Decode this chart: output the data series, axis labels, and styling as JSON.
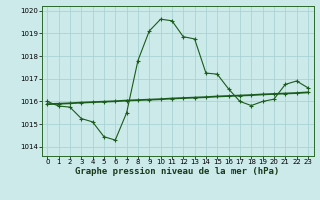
{
  "title": "Graphe pression niveau de la mer (hPa)",
  "bg_color": "#cceaea",
  "grid_color": "#aad4d4",
  "line_color": "#1a5c1a",
  "ylim": [
    1013.6,
    1020.2
  ],
  "xlim": [
    -0.5,
    23.5
  ],
  "yticks": [
    1014,
    1015,
    1016,
    1017,
    1018,
    1019,
    1020
  ],
  "xticks": [
    0,
    1,
    2,
    3,
    4,
    5,
    6,
    7,
    8,
    9,
    10,
    11,
    12,
    13,
    14,
    15,
    16,
    17,
    18,
    19,
    20,
    21,
    22,
    23
  ],
  "main_x": [
    0,
    1,
    2,
    3,
    4,
    5,
    6,
    7,
    8,
    9,
    10,
    11,
    12,
    13,
    14,
    15,
    16,
    17,
    18,
    19,
    20,
    21,
    22,
    23
  ],
  "main_y": [
    1016.0,
    1015.8,
    1015.75,
    1015.25,
    1015.1,
    1014.45,
    1014.3,
    1015.5,
    1017.8,
    1019.1,
    1019.62,
    1019.55,
    1018.85,
    1018.75,
    1017.25,
    1017.2,
    1016.55,
    1016.0,
    1015.82,
    1016.0,
    1016.1,
    1016.75,
    1016.9,
    1016.6
  ],
  "trend_x": [
    0,
    1,
    2,
    3,
    4,
    5,
    6,
    7,
    8,
    9,
    10,
    11,
    12,
    13,
    14,
    15,
    16,
    17,
    18,
    19,
    20,
    21,
    22,
    23
  ],
  "trend_y": [
    1015.88,
    1015.9,
    1015.92,
    1015.95,
    1015.97,
    1015.99,
    1016.01,
    1016.04,
    1016.06,
    1016.08,
    1016.1,
    1016.13,
    1016.15,
    1016.17,
    1016.19,
    1016.22,
    1016.24,
    1016.26,
    1016.28,
    1016.31,
    1016.33,
    1016.35,
    1016.37,
    1016.4
  ],
  "title_fontsize": 6.5,
  "tick_fontsize": 5
}
